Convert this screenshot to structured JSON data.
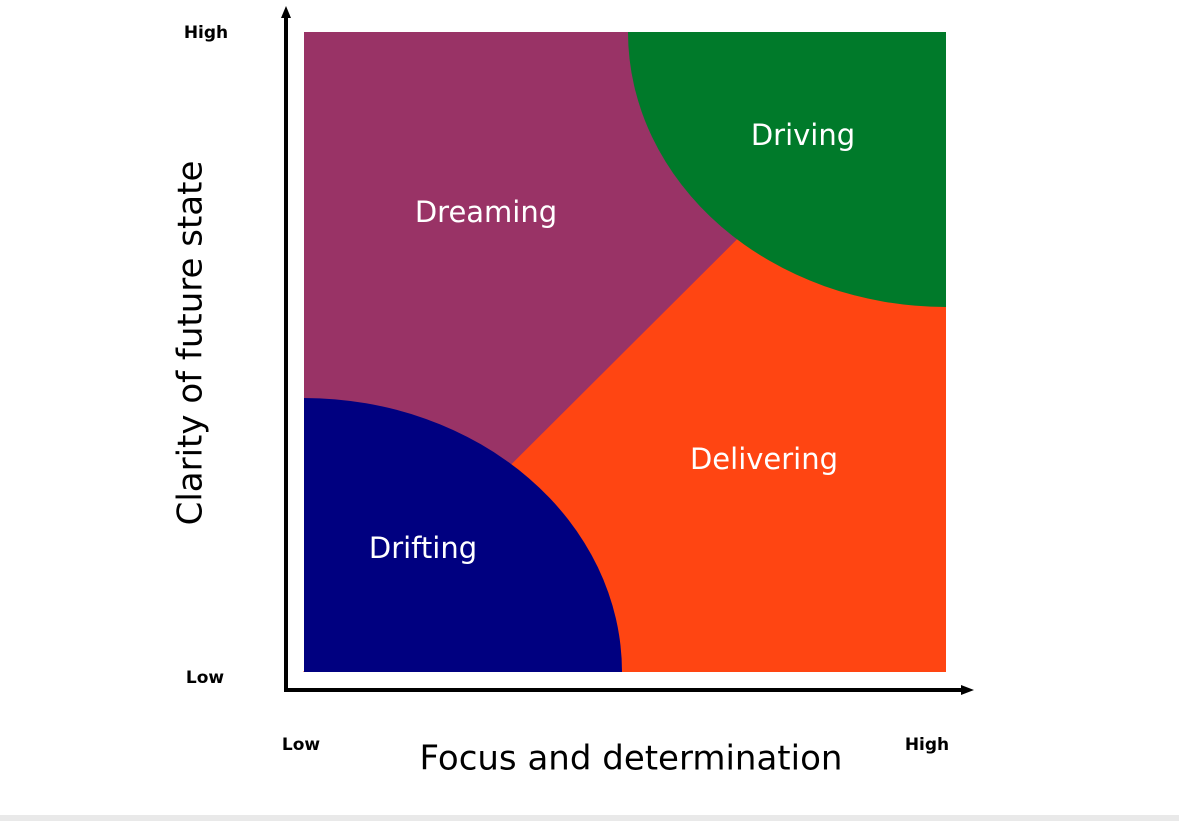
{
  "y_axis": {
    "title": "Clarity of future state",
    "high_label": "High",
    "low_label": "Low"
  },
  "x_axis": {
    "title": "Focus and determination",
    "high_label": "High",
    "low_label": "Low"
  },
  "regions": [
    {
      "label": "Driving"
    },
    {
      "label": "Dreaming"
    },
    {
      "label": "Delivering"
    },
    {
      "label": "Drifting"
    }
  ]
}
